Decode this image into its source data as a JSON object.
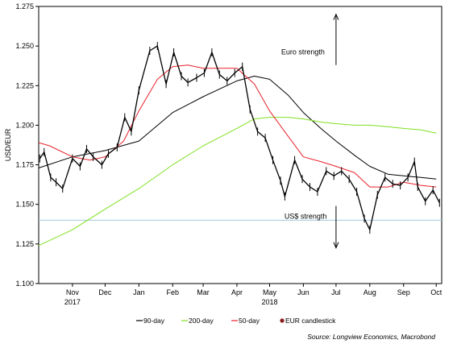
{
  "chart_data": {
    "type": "line",
    "ylabel": "USD/EUR",
    "ylim": [
      1.1,
      1.275
    ],
    "yticks": [
      "1.100",
      "1.125",
      "1.150",
      "1.175",
      "1.200",
      "1.225",
      "1.250",
      "1.275"
    ],
    "xlim": [
      "2017-10-15",
      "2018-10-20"
    ],
    "month_ticks": [
      {
        "label": "Nov",
        "date": "2017-11-15"
      },
      {
        "label": "Dec",
        "date": "2017-12-15"
      },
      {
        "label": "Jan",
        "date": "2018-01-15"
      },
      {
        "label": "Feb",
        "date": "2018-02-15"
      },
      {
        "label": "Mar",
        "date": "2018-03-15"
      },
      {
        "label": "Apr",
        "date": "2018-04-15"
      },
      {
        "label": "May",
        "date": "2018-05-15"
      },
      {
        "label": "Jun",
        "date": "2018-06-15"
      },
      {
        "label": "Jul",
        "date": "2018-07-15"
      },
      {
        "label": "Aug",
        "date": "2018-08-15"
      },
      {
        "label": "Sep",
        "date": "2018-09-15"
      },
      {
        "label": "Oct",
        "date": "2018-10-15"
      }
    ],
    "year_labels": [
      {
        "label": "2017",
        "date": "2017-11-15"
      },
      {
        "label": "2018",
        "date": "2018-05-15"
      }
    ],
    "reference_line": {
      "y": 1.14,
      "color": "#9ecae1"
    },
    "series": [
      {
        "name": "90-day",
        "color": "#000000",
        "points": [
          [
            "2017-10-15",
            1.173
          ],
          [
            "2017-11-15",
            1.18
          ],
          [
            "2017-12-15",
            1.184
          ],
          [
            "2018-01-15",
            1.19
          ],
          [
            "2018-02-15",
            1.208
          ],
          [
            "2018-03-15",
            1.218
          ],
          [
            "2018-04-15",
            1.228
          ],
          [
            "2018-05-01",
            1.231
          ],
          [
            "2018-05-15",
            1.229
          ],
          [
            "2018-06-01",
            1.219
          ],
          [
            "2018-06-15",
            1.208
          ],
          [
            "2018-07-01",
            1.198
          ],
          [
            "2018-07-15",
            1.19
          ],
          [
            "2018-08-01",
            1.181
          ],
          [
            "2018-08-15",
            1.174
          ],
          [
            "2018-09-01",
            1.169
          ],
          [
            "2018-09-15",
            1.168
          ],
          [
            "2018-10-01",
            1.167
          ],
          [
            "2018-10-15",
            1.166
          ]
        ]
      },
      {
        "name": "200-day",
        "color": "#7fe020",
        "points": [
          [
            "2017-10-15",
            1.124
          ],
          [
            "2017-11-15",
            1.134
          ],
          [
            "2017-12-15",
            1.147
          ],
          [
            "2018-01-15",
            1.16
          ],
          [
            "2018-02-15",
            1.175
          ],
          [
            "2018-03-15",
            1.187
          ],
          [
            "2018-04-15",
            1.198
          ],
          [
            "2018-05-01",
            1.204
          ],
          [
            "2018-05-15",
            1.205
          ],
          [
            "2018-06-01",
            1.205
          ],
          [
            "2018-06-15",
            1.204
          ],
          [
            "2018-07-01",
            1.202
          ],
          [
            "2018-07-15",
            1.201
          ],
          [
            "2018-08-01",
            1.2
          ],
          [
            "2018-08-15",
            1.2
          ],
          [
            "2018-09-01",
            1.199
          ],
          [
            "2018-09-15",
            1.198
          ],
          [
            "2018-10-01",
            1.197
          ],
          [
            "2018-10-15",
            1.195
          ]
        ]
      },
      {
        "name": "50-day",
        "color": "#e8212b",
        "points": [
          [
            "2017-10-15",
            1.189
          ],
          [
            "2017-10-25",
            1.187
          ],
          [
            "2017-11-15",
            1.18
          ],
          [
            "2017-12-01",
            1.178
          ],
          [
            "2017-12-15",
            1.18
          ],
          [
            "2018-01-01",
            1.19
          ],
          [
            "2018-01-15",
            1.209
          ],
          [
            "2018-02-01",
            1.229
          ],
          [
            "2018-02-15",
            1.237
          ],
          [
            "2018-03-01",
            1.238
          ],
          [
            "2018-03-15",
            1.236
          ],
          [
            "2018-04-01",
            1.236
          ],
          [
            "2018-04-15",
            1.236
          ],
          [
            "2018-05-01",
            1.226
          ],
          [
            "2018-05-15",
            1.209
          ],
          [
            "2018-06-01",
            1.193
          ],
          [
            "2018-06-15",
            1.18
          ],
          [
            "2018-07-01",
            1.177
          ],
          [
            "2018-07-15",
            1.174
          ],
          [
            "2018-08-01",
            1.17
          ],
          [
            "2018-08-15",
            1.161
          ],
          [
            "2018-09-01",
            1.161
          ],
          [
            "2018-09-15",
            1.164
          ],
          [
            "2018-10-01",
            1.162
          ],
          [
            "2018-10-15",
            1.161
          ]
        ]
      },
      {
        "name": "EUR candlestick",
        "color": "#000000",
        "points": [
          [
            "2017-10-16",
            1.179
          ],
          [
            "2017-10-20",
            1.183
          ],
          [
            "2017-10-26",
            1.167
          ],
          [
            "2017-10-31",
            1.164
          ],
          [
            "2017-11-06",
            1.16
          ],
          [
            "2017-11-15",
            1.179
          ],
          [
            "2017-11-22",
            1.174
          ],
          [
            "2017-11-28",
            1.185
          ],
          [
            "2017-12-04",
            1.18
          ],
          [
            "2017-12-12",
            1.175
          ],
          [
            "2017-12-18",
            1.182
          ],
          [
            "2017-12-26",
            1.186
          ],
          [
            "2018-01-02",
            1.205
          ],
          [
            "2018-01-08",
            1.196
          ],
          [
            "2018-01-15",
            1.222
          ],
          [
            "2018-01-25",
            1.247
          ],
          [
            "2018-02-01",
            1.25
          ],
          [
            "2018-02-09",
            1.226
          ],
          [
            "2018-02-16",
            1.246
          ],
          [
            "2018-02-23",
            1.231
          ],
          [
            "2018-03-01",
            1.227
          ],
          [
            "2018-03-09",
            1.23
          ],
          [
            "2018-03-16",
            1.233
          ],
          [
            "2018-03-23",
            1.246
          ],
          [
            "2018-03-30",
            1.232
          ],
          [
            "2018-04-06",
            1.228
          ],
          [
            "2018-04-13",
            1.233
          ],
          [
            "2018-04-20",
            1.237
          ],
          [
            "2018-04-27",
            1.21
          ],
          [
            "2018-05-04",
            1.196
          ],
          [
            "2018-05-11",
            1.192
          ],
          [
            "2018-05-18",
            1.178
          ],
          [
            "2018-05-25",
            1.165
          ],
          [
            "2018-05-29",
            1.155
          ],
          [
            "2018-06-07",
            1.178
          ],
          [
            "2018-06-14",
            1.166
          ],
          [
            "2018-06-21",
            1.161
          ],
          [
            "2018-06-28",
            1.158
          ],
          [
            "2018-07-06",
            1.171
          ],
          [
            "2018-07-13",
            1.168
          ],
          [
            "2018-07-20",
            1.171
          ],
          [
            "2018-07-27",
            1.166
          ],
          [
            "2018-08-03",
            1.158
          ],
          [
            "2018-08-10",
            1.141
          ],
          [
            "2018-08-15",
            1.134
          ],
          [
            "2018-08-22",
            1.156
          ],
          [
            "2018-08-29",
            1.167
          ],
          [
            "2018-09-05",
            1.163
          ],
          [
            "2018-09-12",
            1.162
          ],
          [
            "2018-09-19",
            1.167
          ],
          [
            "2018-09-25",
            1.177
          ],
          [
            "2018-09-28",
            1.161
          ],
          [
            "2018-10-05",
            1.152
          ],
          [
            "2018-10-12",
            1.159
          ],
          [
            "2018-10-18",
            1.151
          ]
        ]
      }
    ],
    "annotations": [
      {
        "text": "Euro strength",
        "arrow": "up",
        "date": "2018-07-15",
        "y": 1.238
      },
      {
        "text": "US$ strength",
        "arrow": "down",
        "date": "2018-07-15",
        "y": 1.149
      }
    ],
    "legend_position": "bottom",
    "grid": false,
    "source": "Source: Longview Economics, Macrobond"
  }
}
